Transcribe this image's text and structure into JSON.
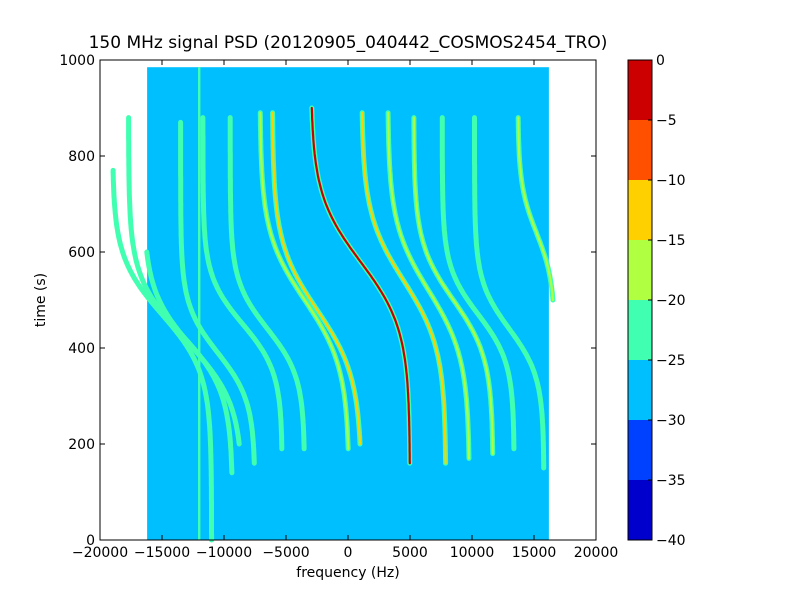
{
  "chart_data": {
    "type": "heatmap",
    "title": "150 MHz signal PSD (20120905_040442_COSMOS2454_TRO)",
    "xlabel": "frequency (Hz)",
    "ylabel": "time (s)",
    "xlim": [
      -20000,
      20000
    ],
    "ylim": [
      0,
      1000
    ],
    "x_ticks": [
      -20000,
      -15000,
      -10000,
      -5000,
      0,
      5000,
      10000,
      15000,
      20000
    ],
    "x_tick_labels": [
      "−20000",
      "−15000",
      "−10000",
      "−5000",
      "0",
      "5000",
      "10000",
      "15000",
      "20000"
    ],
    "y_ticks": [
      0,
      200,
      400,
      600,
      800,
      1000
    ],
    "y_tick_labels": [
      "0",
      "200",
      "400",
      "600",
      "800",
      "1000"
    ],
    "data_extent": {
      "x": [
        -16200,
        16200
      ],
      "y": [
        0,
        985
      ]
    },
    "background_level": -27,
    "colorbar": {
      "range": [
        -40,
        0
      ],
      "ticks": [
        0,
        -5,
        -10,
        -15,
        -20,
        -25,
        -30,
        -35,
        -40
      ],
      "tick_labels": [
        "0",
        "−5",
        "−10",
        "−15",
        "−20",
        "−25",
        "−30",
        "−35",
        "−40"
      ],
      "bands": [
        {
          "from": -40,
          "to": -35,
          "color": "#0000cc"
        },
        {
          "from": -35,
          "to": -30,
          "color": "#0040ff"
        },
        {
          "from": -30,
          "to": -25,
          "color": "#00bfff"
        },
        {
          "from": -25,
          "to": -20,
          "color": "#40ffb0"
        },
        {
          "from": -20,
          "to": -15,
          "color": "#b0ff40"
        },
        {
          "from": -15,
          "to": -10,
          "color": "#ffd000"
        },
        {
          "from": -10,
          "to": -5,
          "color": "#ff5000"
        },
        {
          "from": -5,
          "to": 0,
          "color": "#cc0000"
        }
      ]
    },
    "vertical_line": {
      "x": -12000,
      "level": -22
    },
    "traces": [
      {
        "center_x": -15000,
        "center_t": 470,
        "amplitude": 4000,
        "width": 120,
        "t_range": [
          0,
          770
        ],
        "level": -21
      },
      {
        "center_x": -13500,
        "center_t": 430,
        "amplitude": 4200,
        "width": 120,
        "t_range": [
          140,
          880
        ],
        "level": -21
      },
      {
        "center_x": -12500,
        "center_t": 400,
        "amplitude": 4000,
        "width": 120,
        "t_range": [
          200,
          600
        ],
        "level": -21
      },
      {
        "center_x": -10500,
        "center_t": 390,
        "amplitude": 3000,
        "width": 100,
        "t_range": [
          160,
          870
        ],
        "level": -21
      },
      {
        "center_x": -8500,
        "center_t": 450,
        "amplitude": 3200,
        "width": 100,
        "t_range": [
          190,
          880
        ],
        "level": -21
      },
      {
        "center_x": -6500,
        "center_t": 440,
        "amplitude": 3000,
        "width": 100,
        "t_range": [
          190,
          880
        ],
        "level": -21
      },
      {
        "center_x": -3500,
        "center_t": 500,
        "amplitude": 3600,
        "width": 140,
        "t_range": [
          190,
          890
        ],
        "level": -17
      },
      {
        "center_x": -2500,
        "center_t": 480,
        "amplitude": 3600,
        "width": 140,
        "t_range": [
          200,
          890
        ],
        "level": -15
      },
      {
        "center_x": 1000,
        "center_t": 580,
        "amplitude": 4000,
        "width": 140,
        "t_range": [
          160,
          900
        ],
        "level": -5
      },
      {
        "center_x": 4500,
        "center_t": 540,
        "amplitude": 3400,
        "width": 140,
        "t_range": [
          160,
          890
        ],
        "level": -15
      },
      {
        "center_x": 6500,
        "center_t": 520,
        "amplitude": 3300,
        "width": 140,
        "t_range": [
          170,
          890
        ],
        "level": -17
      },
      {
        "center_x": 8500,
        "center_t": 500,
        "amplitude": 3200,
        "width": 120,
        "t_range": [
          180,
          880
        ],
        "level": -19
      },
      {
        "center_x": 10500,
        "center_t": 470,
        "amplitude": 2900,
        "width": 100,
        "t_range": [
          190,
          880
        ],
        "level": -21
      },
      {
        "center_x": 13000,
        "center_t": 440,
        "amplitude": 2800,
        "width": 100,
        "t_range": [
          150,
          880
        ],
        "level": -21
      },
      {
        "center_x": 15200,
        "center_t": 640,
        "amplitude": 1500,
        "width": 100,
        "t_range": [
          500,
          880
        ],
        "level": -19
      }
    ],
    "grid": false,
    "legend": "none"
  }
}
